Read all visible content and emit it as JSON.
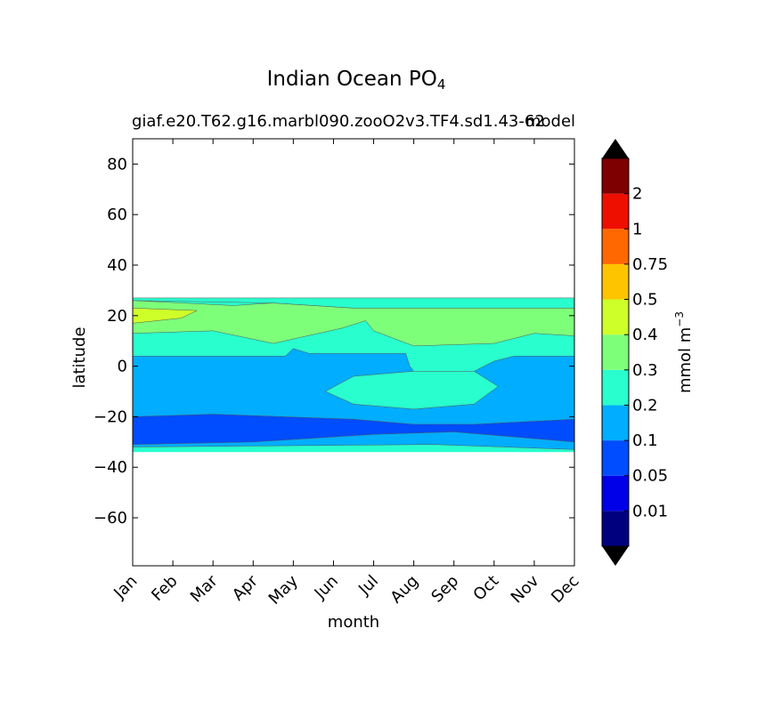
{
  "chart_data": {
    "type": "heatmap",
    "title": "Indian Ocean PO",
    "title_subscript": "4",
    "subtitle": "giaf.e20.T62.g16.marbl090.zooO2v3.TF4.sd1.43-62",
    "subtitle_right": "model",
    "xlabel": "month",
    "ylabel": "latitude",
    "x_categories": [
      "Jan",
      "Feb",
      "Mar",
      "Apr",
      "May",
      "Jun",
      "Jul",
      "Aug",
      "Sep",
      "Oct",
      "Nov",
      "Dec"
    ],
    "ylim": [
      -79,
      90
    ],
    "y_ticks": [
      80,
      60,
      40,
      20,
      0,
      -20,
      -40,
      -60
    ],
    "y_tick_labels": [
      "80",
      "60",
      "40",
      "20",
      "0",
      "−20",
      "−40",
      "−60"
    ],
    "colorbar": {
      "label": "mmol m",
      "label_superscript": "−3",
      "levels_labels": [
        "0.01",
        "0.05",
        "0.1",
        "0.2",
        "0.3",
        "0.4",
        "0.5",
        "0.75",
        "1",
        "2"
      ],
      "colors": [
        "#00007f",
        "#0000e8",
        "#004cff",
        "#00adff",
        "#29ffce",
        "#7dff7a",
        "#ceff29",
        "#ffc400",
        "#ff6800",
        "#ee0f00",
        "#7f0000"
      ],
      "extend_low_color": "#000000",
      "extend_high_color": "#000000"
    },
    "domain_lat_range": [
      -34,
      27
    ],
    "field_bands_by_month": [
      {
        "month": "Jan",
        "lat_bins": [
          [
            -34,
            -31,
            "0.2-0.3"
          ],
          [
            -31,
            -20,
            "0.1-0.2"
          ],
          [
            -20,
            3,
            "0.2-0.3"
          ],
          [
            3,
            16,
            "0.3-0.4"
          ],
          [
            16,
            20,
            "0.4-0.5"
          ],
          [
            20,
            27,
            "0.4-0.5"
          ]
        ]
      },
      {
        "month": "Jun",
        "lat_bins": [
          [
            -34,
            -32,
            "0.2-0.3"
          ],
          [
            -32,
            -21,
            "0.1-0.2"
          ],
          [
            -21,
            7,
            "0.2-0.3"
          ],
          [
            7,
            20,
            "0.3-0.4"
          ],
          [
            20,
            22,
            "0.4-0.5"
          ],
          [
            22,
            27,
            "0.3-0.4"
          ]
        ]
      },
      {
        "month": "Aug",
        "lat_bins": [
          [
            -34,
            -30,
            "0.2-0.3"
          ],
          [
            -30,
            -24,
            "0.1-0.2"
          ],
          [
            -24,
            -17,
            "0.2-0.3"
          ],
          [
            -17,
            -2,
            "0.3-0.4"
          ],
          [
            -2,
            8,
            "0.2-0.3"
          ],
          [
            8,
            22,
            "0.4-0.5"
          ],
          [
            22,
            27,
            "0.3-0.4"
          ]
        ]
      },
      {
        "month": "Dec",
        "lat_bins": [
          [
            -34,
            -32,
            "0.2-0.3"
          ],
          [
            -32,
            -20,
            "0.1-0.2"
          ],
          [
            -20,
            4,
            "0.2-0.3"
          ],
          [
            4,
            12,
            "0.3-0.4"
          ],
          [
            12,
            22,
            "0.4-0.5"
          ],
          [
            22,
            27,
            "0.3-0.4"
          ]
        ]
      }
    ]
  }
}
